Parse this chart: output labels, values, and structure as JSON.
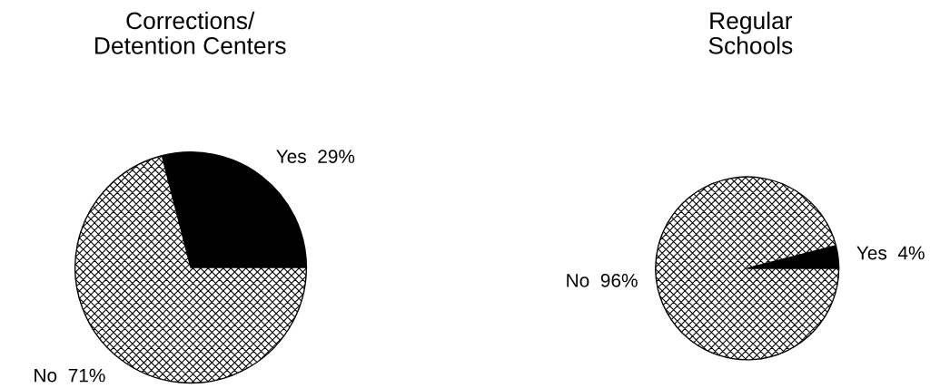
{
  "chart_data": [
    {
      "type": "pie",
      "title": "Corrections/\nDetention Centers",
      "categories": [
        "Yes",
        "No"
      ],
      "values": [
        29,
        71
      ],
      "value_labels": [
        "29%",
        "71%"
      ],
      "colors": [
        "#000000",
        "#ffffff"
      ]
    },
    {
      "type": "pie",
      "title": "Regular\nSchools",
      "categories": [
        "Yes",
        "No"
      ],
      "values": [
        4,
        96
      ],
      "value_labels": [
        "4%",
        "96%"
      ],
      "colors": [
        "#000000",
        "#ffffff"
      ]
    }
  ]
}
